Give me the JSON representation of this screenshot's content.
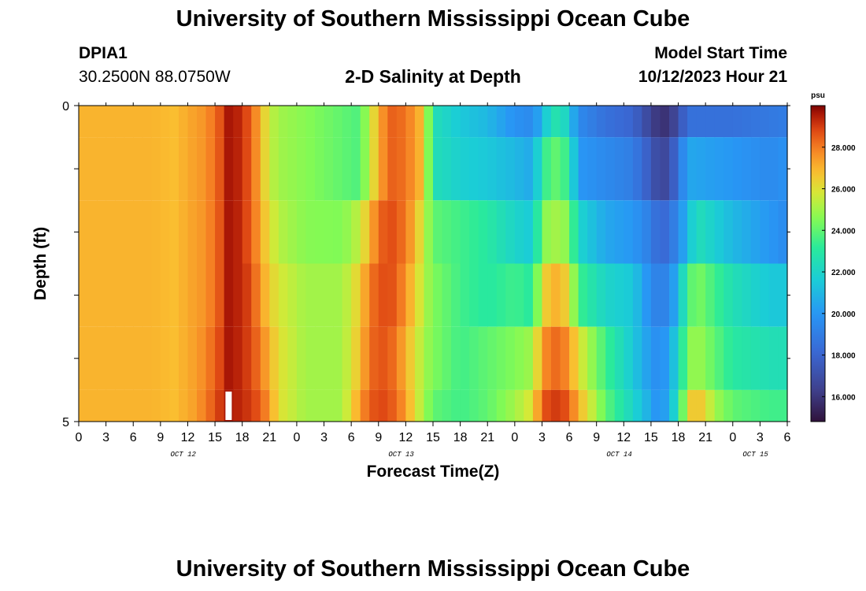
{
  "header": {
    "title": "University of Southern Mississippi Ocean Cube",
    "station": "DPIA1",
    "coords": "30.2500N  88.0750W",
    "chart_title": "2-D Salinity at Depth",
    "start_label": "Model Start Time",
    "start_value": "10/12/2023 Hour 21"
  },
  "footer": {
    "title": "University of Southern Mississippi Ocean Cube"
  },
  "chart_data": {
    "type": "heatmap",
    "title": "2-D Salinity at Depth",
    "xlabel": "Forecast Time(Z)",
    "ylabel": "Depth (ft)",
    "x_hours": [
      0,
      78
    ],
    "x_tick_labels": [
      "0",
      "3",
      "6",
      "9",
      "12",
      "15",
      "18",
      "21",
      "0",
      "3",
      "6",
      "9",
      "12",
      "15",
      "18",
      "21",
      "0",
      "3",
      "6",
      "9",
      "12",
      "15",
      "18",
      "21",
      "0",
      "3",
      "6"
    ],
    "date_labels": [
      {
        "label": "OCT 12",
        "hour": 11.5
      },
      {
        "label": "OCT 13",
        "hour": 35.5
      },
      {
        "label": "OCT 14",
        "hour": 59.5
      },
      {
        "label": "OCT 15",
        "hour": 74.5
      }
    ],
    "y_range": [
      0,
      5
    ],
    "y_tick_labels": [
      {
        "value": 0,
        "label": "0"
      },
      {
        "value": 5,
        "label": "5"
      }
    ],
    "depth_bands": 5,
    "colorbar": {
      "unit": "psu",
      "range": [
        14.8,
        30.0
      ],
      "tick_values": [
        16,
        18,
        20,
        22,
        24,
        26,
        28
      ],
      "tick_labels": [
        "16.000",
        "18.000",
        "20.000",
        "22.000",
        "24.000",
        "26.000",
        "28.000"
      ],
      "colormap": "turbo-like"
    },
    "profiles": [
      {
        "depth_band": 0,
        "keyframes": [
          [
            0,
            27.0
          ],
          [
            8,
            27.0
          ],
          [
            10.5,
            26.8
          ],
          [
            12.5,
            27.3
          ],
          [
            14,
            27.6
          ],
          [
            15.5,
            28.6
          ],
          [
            16.5,
            29.6
          ],
          [
            17.5,
            29.4
          ],
          [
            19,
            28.5
          ],
          [
            20,
            27.0
          ],
          [
            21,
            25.5
          ],
          [
            22,
            25.0
          ],
          [
            25,
            24.6
          ],
          [
            29,
            24.0
          ],
          [
            31,
            23.7
          ],
          [
            32,
            25.5
          ],
          [
            33,
            27.0
          ],
          [
            34,
            28.3
          ],
          [
            35,
            28.5
          ],
          [
            36,
            28.0
          ],
          [
            37,
            27.6
          ],
          [
            38,
            26.5
          ],
          [
            39,
            22.5
          ],
          [
            42,
            21.5
          ],
          [
            45,
            21.0
          ],
          [
            48,
            19.8
          ],
          [
            50,
            19.5
          ],
          [
            51,
            21.0
          ],
          [
            52,
            22.5
          ],
          [
            53,
            22.8
          ],
          [
            54,
            21.5
          ],
          [
            55,
            19.5
          ],
          [
            58,
            18.5
          ],
          [
            61,
            18.0
          ],
          [
            63,
            16.5
          ],
          [
            64,
            15.8
          ],
          [
            65,
            16.0
          ],
          [
            66,
            17.0
          ],
          [
            67,
            18.5
          ],
          [
            72,
            18.5
          ],
          [
            76,
            18.8
          ],
          [
            78,
            19.0
          ]
        ]
      },
      {
        "depth_band": 1,
        "keyframes": [
          [
            0,
            27.0
          ],
          [
            8,
            27.0
          ],
          [
            10.5,
            26.8
          ],
          [
            12.5,
            27.3
          ],
          [
            14,
            27.6
          ],
          [
            15.5,
            28.6
          ],
          [
            16.5,
            29.6
          ],
          [
            17.5,
            29.4
          ],
          [
            19,
            28.5
          ],
          [
            20,
            27.0
          ],
          [
            21,
            25.5
          ],
          [
            22,
            25.0
          ],
          [
            25,
            24.6
          ],
          [
            29,
            24.0
          ],
          [
            31,
            23.7
          ],
          [
            32,
            25.5
          ],
          [
            33,
            27.0
          ],
          [
            34,
            28.3
          ],
          [
            35,
            28.5
          ],
          [
            36,
            28.0
          ],
          [
            37,
            27.6
          ],
          [
            38,
            26.5
          ],
          [
            39,
            22.5
          ],
          [
            42,
            21.8
          ],
          [
            45,
            21.5
          ],
          [
            48,
            21.0
          ],
          [
            50,
            20.5
          ],
          [
            51,
            23.0
          ],
          [
            52,
            24.0
          ],
          [
            53,
            24.0
          ],
          [
            54,
            23.0
          ],
          [
            55,
            20.0
          ],
          [
            58,
            19.5
          ],
          [
            61,
            19.0
          ],
          [
            63,
            17.5
          ],
          [
            64,
            16.5
          ],
          [
            65,
            17.0
          ],
          [
            66,
            18.5
          ],
          [
            67,
            20.5
          ],
          [
            72,
            20.0
          ],
          [
            76,
            19.5
          ],
          [
            78,
            19.8
          ]
        ]
      },
      {
        "depth_band": 2,
        "keyframes": [
          [
            0,
            27.0
          ],
          [
            8,
            27.0
          ],
          [
            10.5,
            26.8
          ],
          [
            12.5,
            27.3
          ],
          [
            14,
            27.6
          ],
          [
            15.5,
            28.6
          ],
          [
            16.5,
            29.6
          ],
          [
            17.5,
            29.4
          ],
          [
            19,
            28.5
          ],
          [
            20,
            27.2
          ],
          [
            21,
            26.0
          ],
          [
            22,
            25.3
          ],
          [
            25,
            24.6
          ],
          [
            29,
            24.5
          ],
          [
            31,
            25.5
          ],
          [
            32,
            27.0
          ],
          [
            33,
            28.2
          ],
          [
            34,
            28.8
          ],
          [
            35,
            28.6
          ],
          [
            36,
            28.0
          ],
          [
            37,
            27.0
          ],
          [
            38,
            25.5
          ],
          [
            39,
            24.0
          ],
          [
            42,
            23.5
          ],
          [
            45,
            23.0
          ],
          [
            48,
            22.0
          ],
          [
            50,
            21.5
          ],
          [
            51,
            24.5
          ],
          [
            52,
            25.0
          ],
          [
            53,
            25.0
          ],
          [
            54,
            24.5
          ],
          [
            55,
            22.0
          ],
          [
            58,
            20.5
          ],
          [
            61,
            20.0
          ],
          [
            63,
            19.0
          ],
          [
            64,
            18.0
          ],
          [
            65,
            18.5
          ],
          [
            66,
            19.5
          ],
          [
            67,
            21.0
          ],
          [
            68,
            22.5
          ],
          [
            72,
            21.0
          ],
          [
            76,
            20.0
          ],
          [
            78,
            19.5
          ]
        ]
      },
      {
        "depth_band": 3,
        "keyframes": [
          [
            0,
            27.0
          ],
          [
            8,
            27.0
          ],
          [
            10.5,
            26.8
          ],
          [
            12.5,
            27.3
          ],
          [
            14,
            27.6
          ],
          [
            15.5,
            28.6
          ],
          [
            16.5,
            29.6
          ],
          [
            17.5,
            29.4
          ],
          [
            19,
            28.8
          ],
          [
            20,
            27.5
          ],
          [
            21,
            26.5
          ],
          [
            22,
            25.8
          ],
          [
            25,
            25.0
          ],
          [
            29,
            25.0
          ],
          [
            31,
            26.5
          ],
          [
            32,
            28.0
          ],
          [
            33,
            28.6
          ],
          [
            34,
            28.8
          ],
          [
            35,
            28.5
          ],
          [
            36,
            27.5
          ],
          [
            37,
            26.5
          ],
          [
            38,
            25.2
          ],
          [
            39,
            24.5
          ],
          [
            42,
            23.5
          ],
          [
            45,
            23.0
          ],
          [
            48,
            23.5
          ],
          [
            50,
            23.0
          ],
          [
            51,
            26.0
          ],
          [
            52,
            27.0
          ],
          [
            53,
            27.0
          ],
          [
            54,
            26.0
          ],
          [
            55,
            23.5
          ],
          [
            58,
            22.0
          ],
          [
            61,
            21.5
          ],
          [
            63,
            19.5
          ],
          [
            64,
            19.0
          ],
          [
            65,
            19.5
          ],
          [
            66,
            21.0
          ],
          [
            67,
            23.5
          ],
          [
            68,
            24.5
          ],
          [
            72,
            22.5
          ],
          [
            76,
            21.5
          ],
          [
            78,
            21.5
          ]
        ]
      },
      {
        "depth_band": 4,
        "keyframes": [
          [
            0,
            27.0
          ],
          [
            8,
            27.0
          ],
          [
            10.5,
            26.8
          ],
          [
            12.5,
            27.3
          ],
          [
            14,
            27.8
          ],
          [
            15.5,
            28.8
          ],
          [
            16.5,
            29.6
          ],
          [
            17.5,
            29.4
          ],
          [
            19,
            28.8
          ],
          [
            20,
            28.0
          ],
          [
            21,
            27.0
          ],
          [
            22,
            26.0
          ],
          [
            25,
            25.0
          ],
          [
            29,
            25.0
          ],
          [
            31,
            26.8
          ],
          [
            32,
            28.2
          ],
          [
            33,
            28.6
          ],
          [
            34,
            28.6
          ],
          [
            35,
            28.0
          ],
          [
            36,
            27.0
          ],
          [
            37,
            26.0
          ],
          [
            38,
            25.0
          ],
          [
            39,
            24.5
          ],
          [
            42,
            23.5
          ],
          [
            45,
            24.0
          ],
          [
            48,
            24.5
          ],
          [
            50,
            25.0
          ],
          [
            51,
            27.5
          ],
          [
            52,
            28.2
          ],
          [
            53,
            28.3
          ],
          [
            54,
            27.5
          ],
          [
            55,
            26.0
          ],
          [
            58,
            23.5
          ],
          [
            61,
            21.5
          ],
          [
            63,
            20.0
          ],
          [
            64,
            19.5
          ],
          [
            65,
            20.5
          ],
          [
            66,
            22.0
          ],
          [
            67,
            24.5
          ],
          [
            68,
            25.0
          ],
          [
            72,
            23.0
          ],
          [
            76,
            22.5
          ],
          [
            78,
            22.5
          ]
        ]
      },
      {
        "depth_band": 5,
        "keyframes": [
          [
            0,
            27.0
          ],
          [
            8,
            27.0
          ],
          [
            10.5,
            26.8
          ],
          [
            12.5,
            27.3
          ],
          [
            14,
            28.0
          ],
          [
            15.5,
            29.0
          ],
          [
            16.5,
            29.6
          ],
          [
            17.5,
            29.4
          ],
          [
            19,
            29.0
          ],
          [
            20,
            28.5
          ],
          [
            21,
            27.5
          ],
          [
            22,
            26.0
          ],
          [
            25,
            25.0
          ],
          [
            29,
            25.0
          ],
          [
            31,
            27.5
          ],
          [
            32,
            28.5
          ],
          [
            33,
            28.8
          ],
          [
            34,
            28.8
          ],
          [
            35,
            28.2
          ],
          [
            36,
            27.5
          ],
          [
            37,
            26.0
          ],
          [
            38,
            25.0
          ],
          [
            39,
            24.0
          ],
          [
            42,
            23.5
          ],
          [
            45,
            24.0
          ],
          [
            48,
            25.0
          ],
          [
            50,
            26.0
          ],
          [
            51,
            28.5
          ],
          [
            52,
            29.0
          ],
          [
            53,
            29.0
          ],
          [
            54,
            28.5
          ],
          [
            55,
            27.0
          ],
          [
            58,
            24.0
          ],
          [
            61,
            22.0
          ],
          [
            63,
            20.5
          ],
          [
            64,
            19.5
          ],
          [
            65,
            21.0
          ],
          [
            66,
            22.5
          ],
          [
            67,
            26.0
          ],
          [
            68,
            27.0
          ],
          [
            70,
            25.0
          ],
          [
            72,
            24.0
          ],
          [
            76,
            23.5
          ],
          [
            78,
            23.5
          ]
        ]
      }
    ],
    "missing_cells": [
      {
        "depth_band": 5,
        "hour": 16.5
      }
    ]
  }
}
